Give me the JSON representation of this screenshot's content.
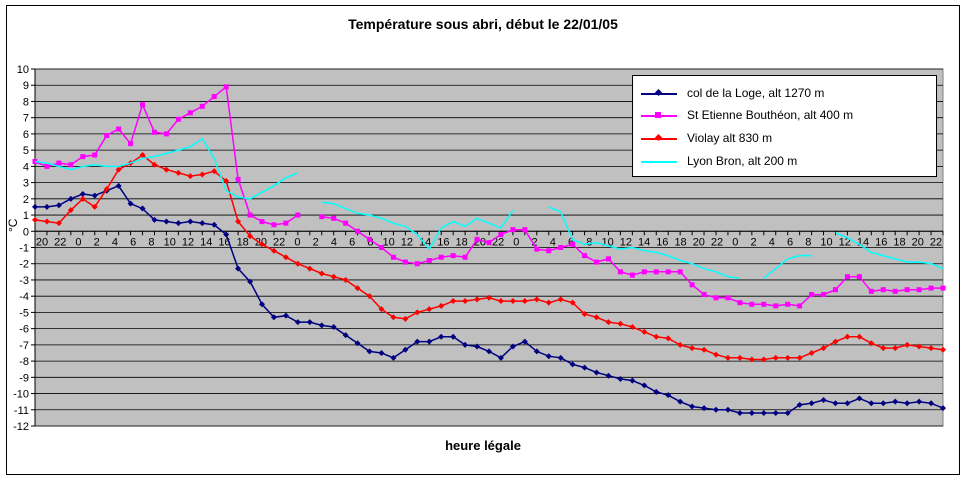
{
  "chart_data": {
    "type": "line",
    "title": "Température sous abri, début le 22/01/05",
    "xlabel": "heure légale",
    "ylabel": "°C",
    "ylim": [
      -12,
      10
    ],
    "yticks": [
      10,
      9,
      8,
      7,
      6,
      5,
      4,
      3,
      2,
      1,
      0,
      -1,
      -2,
      -3,
      -4,
      -5,
      -6,
      -7,
      -8,
      -9,
      -10,
      -11,
      -12
    ],
    "x_tick_labels": [
      "20",
      "22",
      "0",
      "2",
      "4",
      "6",
      "8",
      "10",
      "12",
      "14",
      "16",
      "18",
      "20",
      "22",
      "0",
      "2",
      "4",
      "6",
      "8",
      "10",
      "12",
      "14",
      "16",
      "18",
      "20",
      "22",
      "0",
      "2",
      "4",
      "6",
      "8",
      "10",
      "12",
      "14",
      "16",
      "18",
      "20",
      "22",
      "0",
      "2",
      "4",
      "6",
      "8",
      "10",
      "12",
      "14",
      "16",
      "18",
      "20",
      "22"
    ],
    "x_hours_start": 20,
    "n_points": 77,
    "grid": "horizontal",
    "plot_background": "#c0c0c0",
    "legend_position": "top-right",
    "series": [
      {
        "name": "col de la Loge, alt 1270 m",
        "color": "#000080",
        "marker": "diamond",
        "values": [
          1.5,
          1.5,
          1.6,
          2.0,
          2.3,
          2.2,
          2.5,
          2.8,
          1.7,
          1.4,
          0.7,
          0.6,
          0.5,
          0.6,
          0.5,
          0.4,
          -0.2,
          -2.3,
          -3.1,
          -4.5,
          -5.3,
          -5.2,
          -5.6,
          -5.6,
          -5.8,
          -5.9,
          -6.4,
          -6.9,
          -7.4,
          -7.5,
          -7.8,
          -7.3,
          -6.8,
          -6.8,
          -6.5,
          -6.5,
          -7.0,
          -7.1,
          -7.4,
          -7.8,
          -7.1,
          -6.8,
          -7.4,
          -7.7,
          -7.8,
          -8.2,
          -8.4,
          -8.7,
          -8.9,
          -9.1,
          -9.2,
          -9.5,
          -9.9,
          -10.1,
          -10.5,
          -10.8,
          -10.9,
          -11.0,
          -11.0,
          -11.2,
          -11.2,
          -11.2,
          -11.2,
          -11.2,
          -10.7,
          -10.6,
          -10.4,
          -10.6,
          -10.6,
          -10.3,
          -10.6,
          -10.6,
          -10.5,
          -10.6,
          -10.5,
          -10.6,
          -10.9
        ]
      },
      {
        "name": "St Etienne Bouthéon, alt 400 m",
        "color": "#ff00ff",
        "marker": "square",
        "values": [
          4.3,
          4.0,
          4.2,
          4.1,
          4.6,
          4.7,
          5.9,
          6.3,
          5.4,
          7.8,
          6.1,
          6.0,
          6.9,
          7.3,
          7.7,
          8.3,
          8.9,
          3.2,
          1.0,
          0.6,
          0.4,
          0.5,
          1.0,
          null,
          0.9,
          0.8,
          0.5,
          0.0,
          -0.5,
          -1.0,
          -1.6,
          -1.9,
          -2.0,
          -1.8,
          -1.6,
          -1.5,
          -1.6,
          -0.5,
          -0.7,
          -0.2,
          0.1,
          0.1,
          -1.1,
          -1.2,
          -1.0,
          -0.8,
          -1.5,
          -1.9,
          -1.7,
          -2.5,
          -2.7,
          -2.5,
          -2.5,
          -2.5,
          -2.5,
          -3.3,
          -3.9,
          -4.1,
          -4.1,
          -4.4,
          -4.5,
          -4.5,
          -4.6,
          -4.5,
          -4.6,
          -3.9,
          -3.9,
          -3.6,
          -2.8,
          -2.8,
          -3.7,
          -3.6,
          -3.7,
          -3.6,
          -3.6,
          -3.5,
          -3.5
        ]
      },
      {
        "name": "Violay alt 830 m",
        "color": "#ff0000",
        "marker": "diamond",
        "values": [
          0.7,
          0.6,
          0.5,
          1.3,
          2.0,
          1.5,
          2.6,
          3.8,
          4.2,
          4.7,
          4.1,
          3.8,
          3.6,
          3.4,
          3.5,
          3.7,
          3.1,
          0.6,
          -0.3,
          -0.8,
          -1.2,
          -1.6,
          -2.0,
          -2.3,
          -2.6,
          -2.8,
          -3.0,
          -3.5,
          -4.0,
          -4.8,
          -5.3,
          -5.4,
          -5.0,
          -4.8,
          -4.6,
          -4.3,
          -4.3,
          -4.2,
          -4.1,
          -4.3,
          -4.3,
          -4.3,
          -4.2,
          -4.4,
          -4.2,
          -4.4,
          -5.1,
          -5.3,
          -5.6,
          -5.7,
          -5.9,
          -6.2,
          -6.5,
          -6.6,
          -7.0,
          -7.2,
          -7.3,
          -7.6,
          -7.8,
          -7.8,
          -7.9,
          -7.9,
          -7.8,
          -7.8,
          -7.8,
          -7.5,
          -7.2,
          -6.8,
          -6.5,
          -6.5,
          -6.9,
          -7.2,
          -7.2,
          -7.0,
          -7.1,
          -7.2,
          -7.3
        ]
      },
      {
        "name": "Lyon Bron, alt 200 m",
        "color": "#00ffff",
        "marker": "none",
        "values": [
          4.3,
          4.2,
          4.0,
          3.8,
          4.0,
          4.1,
          4.0,
          4.0,
          4.2,
          4.5,
          4.6,
          4.8,
          5.0,
          5.2,
          5.7,
          4.5,
          2.5,
          2.1,
          2.0,
          2.4,
          2.8,
          3.3,
          3.6,
          null,
          1.8,
          1.7,
          1.4,
          1.1,
          1.0,
          0.8,
          0.5,
          0.3,
          -0.2,
          -1.1,
          0.2,
          0.6,
          0.3,
          0.8,
          0.5,
          0.2,
          1.3,
          null,
          null,
          1.5,
          1.2,
          -0.5,
          -0.8,
          -0.7,
          -0.9,
          -1.1,
          -1.0,
          -1.2,
          -1.3,
          -1.5,
          -1.8,
          -2.0,
          -2.3,
          -2.5,
          -2.8,
          -2.9,
          null,
          -2.9,
          -2.3,
          -1.7,
          -1.5,
          -1.5,
          null,
          -0.1,
          -0.4,
          -0.8,
          -1.3,
          -1.5,
          -1.7,
          -1.9,
          -1.9,
          -2.0,
          -2.3
        ]
      }
    ]
  }
}
